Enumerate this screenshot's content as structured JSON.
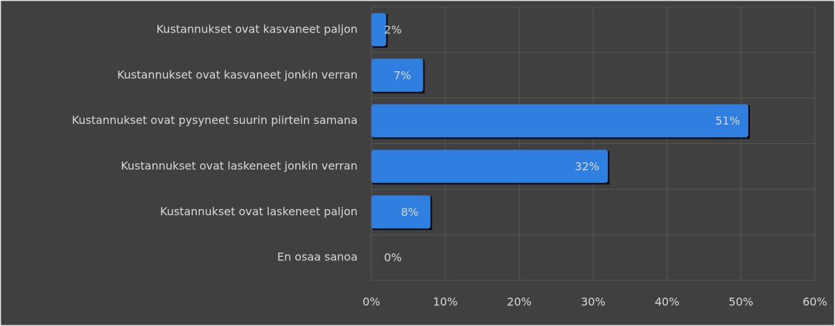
{
  "chart_data": {
    "type": "bar",
    "orientation": "horizontal",
    "categories": [
      "Kustannukset ovat kasvaneet paljon",
      "Kustannukset ovat kasvaneet jonkin verran",
      "Kustannukset ovat pysyneet suurin piirtein samana",
      "Kustannukset ovat laskeneet jonkin verran",
      "Kustannukset ovat laskeneet paljon",
      "En osaa sanoa"
    ],
    "values": [
      2,
      7,
      51,
      32,
      8,
      0
    ],
    "value_labels": [
      "2%",
      "7%",
      "51%",
      "32%",
      "8%",
      "0%"
    ],
    "color": "#2f7fe0",
    "xlim": [
      0,
      60
    ],
    "xticks": [
      {
        "value": 0,
        "label": "0%"
      },
      {
        "value": 10,
        "label": "10%"
      },
      {
        "value": 20,
        "label": "20%"
      },
      {
        "value": 30,
        "label": "30%"
      },
      {
        "value": 40,
        "label": "40%"
      },
      {
        "value": 50,
        "label": "50%"
      },
      {
        "value": 60,
        "label": "60%"
      }
    ],
    "grid": true
  }
}
